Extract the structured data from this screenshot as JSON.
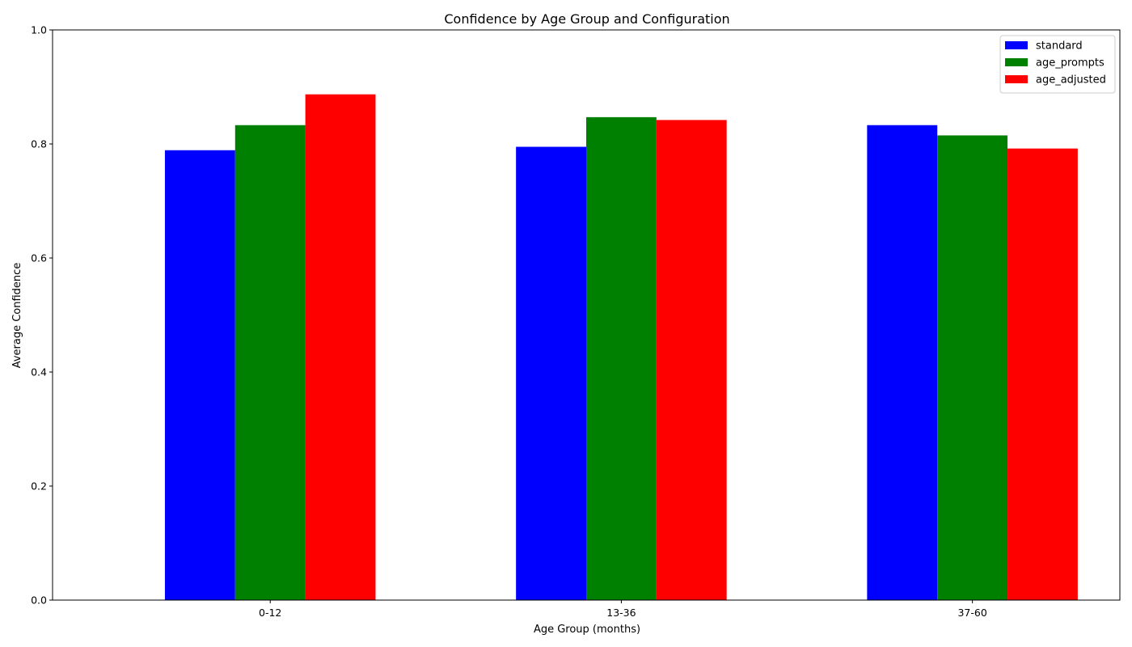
{
  "chart_data": {
    "type": "bar",
    "title": "Confidence by Age Group and Configuration",
    "xlabel": "Age Group (months)",
    "ylabel": "Average Confidence",
    "categories": [
      "0-12",
      "13-36",
      "37-60"
    ],
    "series": [
      {
        "name": "standard",
        "color": "#0000ff",
        "values": [
          0.789,
          0.795,
          0.833
        ]
      },
      {
        "name": "age_prompts",
        "color": "#008000",
        "values": [
          0.833,
          0.847,
          0.815
        ]
      },
      {
        "name": "age_adjusted",
        "color": "#ff0000",
        "values": [
          0.887,
          0.842,
          0.792
        ]
      }
    ],
    "ylim": [
      0,
      1.0
    ],
    "yticks": [
      "0.0",
      "0.2",
      "0.4",
      "0.6",
      "0.8",
      "1.0"
    ],
    "grid": false,
    "legend_position": "top-right"
  }
}
